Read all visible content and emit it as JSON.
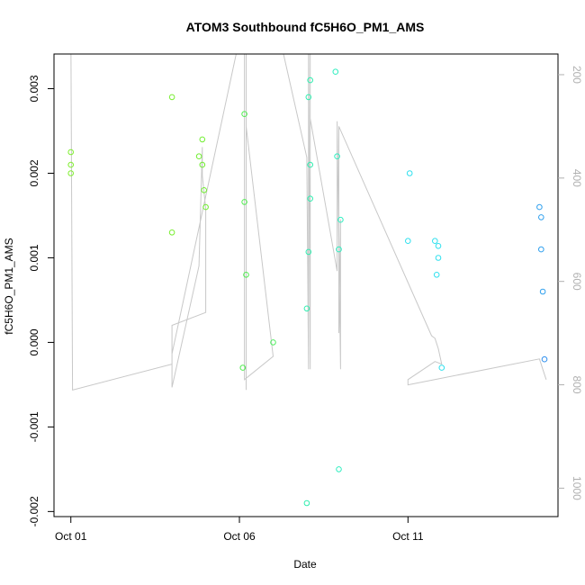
{
  "chart_data": {
    "type": "scatter",
    "title": "ATOM3 Southbound fC5H6O_PM1_AMS",
    "xlabel": "Date",
    "ylabel": "fC5H6O_PM1_AMS",
    "x_ticks": [
      "Oct 01",
      "Oct 06",
      "Oct 11"
    ],
    "x_tick_days": [
      1,
      6,
      11
    ],
    "xlim_days": [
      0.5,
      15.45
    ],
    "ylim": [
      -0.00206,
      0.00341
    ],
    "y_ticks": [
      -0.002,
      -0.001,
      0.0,
      0.001,
      0.002,
      0.003
    ],
    "y_tick_labels": [
      "-0.002",
      "-0.001",
      "0.000",
      "0.001",
      "0.002",
      "0.003"
    ],
    "right_axis": {
      "ticks": [
        200,
        400,
        600,
        800,
        1000
      ],
      "tick_labels": [
        "200",
        "400",
        "600",
        "800",
        "1000"
      ],
      "lim": [
        1055,
        160
      ],
      "color": "#b0b0b0"
    },
    "grid": false,
    "points": [
      {
        "x": 1.0,
        "y": 0.00225,
        "color": "#80ee30"
      },
      {
        "x": 1.0,
        "y": 0.0021,
        "color": "#80ee30"
      },
      {
        "x": 1.0,
        "y": 0.002,
        "color": "#80ee30"
      },
      {
        "x": 4.0,
        "y": 0.0029,
        "color": "#78ee30"
      },
      {
        "x": 4.0,
        "y": 0.0013,
        "color": "#78ee30"
      },
      {
        "x": 4.8,
        "y": 0.0022,
        "color": "#70ee30"
      },
      {
        "x": 4.9,
        "y": 0.0024,
        "color": "#70ee30"
      },
      {
        "x": 4.9,
        "y": 0.0021,
        "color": "#70ee30"
      },
      {
        "x": 4.95,
        "y": 0.0018,
        "color": "#70ee30"
      },
      {
        "x": 5.0,
        "y": 0.0016,
        "color": "#70ee30"
      },
      {
        "x": 6.15,
        "y": 0.0027,
        "color": "#50ee50"
      },
      {
        "x": 6.15,
        "y": 0.00166,
        "color": "#50ee50"
      },
      {
        "x": 6.2,
        "y": 0.0008,
        "color": "#50ee50"
      },
      {
        "x": 6.1,
        "y": -0.0003,
        "color": "#50ee50"
      },
      {
        "x": 7.0,
        "y": 0.0,
        "color": "#50ee60"
      },
      {
        "x": 8.05,
        "y": 0.0029,
        "color": "#30eeb0"
      },
      {
        "x": 8.1,
        "y": 0.0031,
        "color": "#30eeb0"
      },
      {
        "x": 8.1,
        "y": 0.0021,
        "color": "#30eeb0"
      },
      {
        "x": 8.1,
        "y": 0.0017,
        "color": "#30eeb0"
      },
      {
        "x": 8.05,
        "y": 0.00107,
        "color": "#30eeb0"
      },
      {
        "x": 8.0,
        "y": 0.0004,
        "color": "#30eeb0"
      },
      {
        "x": 8.0,
        "y": -0.0019,
        "color": "#30eeb0"
      },
      {
        "x": 8.85,
        "y": 0.0032,
        "color": "#30eec0"
      },
      {
        "x": 8.9,
        "y": 0.0022,
        "color": "#30eec0"
      },
      {
        "x": 9.0,
        "y": 0.00145,
        "color": "#30eec0"
      },
      {
        "x": 8.95,
        "y": 0.0011,
        "color": "#30eec0"
      },
      {
        "x": 8.95,
        "y": -0.0015,
        "color": "#30eec0"
      },
      {
        "x": 11.05,
        "y": 0.002,
        "color": "#30e0ee"
      },
      {
        "x": 11.0,
        "y": 0.0012,
        "color": "#30e0ee"
      },
      {
        "x": 11.8,
        "y": 0.0012,
        "color": "#30e0ee"
      },
      {
        "x": 11.9,
        "y": 0.00114,
        "color": "#30e0ee"
      },
      {
        "x": 11.9,
        "y": 0.001,
        "color": "#30e0ee"
      },
      {
        "x": 11.85,
        "y": 0.0008,
        "color": "#30e0ee"
      },
      {
        "x": 12.0,
        "y": -0.0003,
        "color": "#30e0ee"
      },
      {
        "x": 14.9,
        "y": 0.0016,
        "color": "#30a0ee"
      },
      {
        "x": 14.95,
        "y": 0.00148,
        "color": "#30a0ee"
      },
      {
        "x": 14.95,
        "y": 0.0011,
        "color": "#30a0ee"
      },
      {
        "x": 15.0,
        "y": 0.0006,
        "color": "#30a0ee"
      },
      {
        "x": 15.05,
        "y": -0.0002,
        "color": "#3090ee"
      }
    ],
    "altitude_line": {
      "color": "#c8c8c8",
      "points": [
        [
          1.0,
          100
        ],
        [
          1.05,
          810
        ],
        [
          4.0,
          760
        ],
        [
          4.0,
          685
        ],
        [
          5.0,
          660
        ],
        [
          5.0,
          460
        ],
        [
          4.9,
          395
        ],
        [
          4.9,
          340
        ],
        [
          4.8,
          570
        ],
        [
          4.0,
          805
        ],
        [
          4.0,
          740
        ],
        [
          6.1,
          100
        ],
        [
          6.2,
          100
        ],
        [
          6.2,
          810
        ],
        [
          6.2,
          300
        ],
        [
          7.0,
          745
        ],
        [
          6.15,
          790
        ],
        [
          6.15,
          100
        ],
        [
          7.1,
          100
        ],
        [
          8.0,
          360
        ],
        [
          8.05,
          770
        ],
        [
          8.05,
          100
        ],
        [
          8.1,
          770
        ],
        [
          8.1,
          100
        ],
        [
          8.1,
          285
        ],
        [
          8.9,
          580
        ],
        [
          8.9,
          290
        ],
        [
          9.0,
          770
        ],
        [
          9.0,
          480
        ],
        [
          8.95,
          700
        ],
        [
          8.95,
          300
        ],
        [
          11.7,
          705
        ],
        [
          11.8,
          710
        ],
        [
          11.9,
          730
        ],
        [
          12.0,
          760
        ],
        [
          11.8,
          755
        ],
        [
          11.0,
          790
        ],
        [
          11.0,
          800
        ],
        [
          14.9,
          750
        ],
        [
          15.0,
          770
        ],
        [
          15.1,
          790
        ]
      ]
    }
  }
}
